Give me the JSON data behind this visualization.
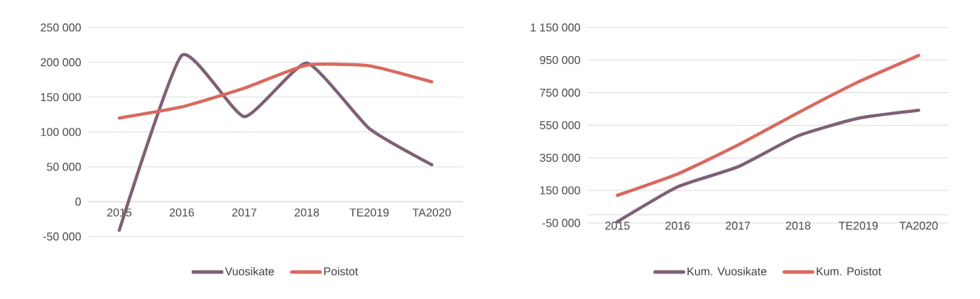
{
  "chart_data": [
    {
      "type": "line",
      "categories": [
        "2015",
        "2016",
        "2017",
        "2018",
        "TE2019",
        "TA2020"
      ],
      "series": [
        {
          "name": "Vuosikate",
          "color": "#7f6075",
          "values": [
            -41000,
            210000,
            122000,
            199000,
            105000,
            53000
          ]
        },
        {
          "name": "Poistot",
          "color": "#d9695f",
          "values": [
            120000,
            136000,
            163000,
            196000,
            195000,
            172000
          ]
        }
      ],
      "ylim": [
        -50000,
        250000
      ],
      "yticks": [
        {
          "value": -50000,
          "label": "-50 000"
        },
        0,
        {
          "value": 50000,
          "label": "50 000"
        },
        {
          "value": 100000,
          "label": "100 000"
        },
        {
          "value": 150000,
          "label": "150 000"
        },
        {
          "value": 200000,
          "label": "200 000"
        },
        {
          "value": 250000,
          "label": "250 000"
        }
      ],
      "grid": "y",
      "legend": "bottom"
    },
    {
      "type": "line",
      "categories": [
        "2015",
        "2016",
        "2017",
        "2018",
        "TE2019",
        "TA2020"
      ],
      "series": [
        {
          "name": "Kum. Vuosikate",
          "color": "#7f6075",
          "values": [
            -42000,
            172000,
            295000,
            485000,
            593000,
            642000
          ]
        },
        {
          "name": "Kum. Poistot",
          "color": "#d9695f",
          "values": [
            120000,
            251000,
            428000,
            627000,
            816000,
            978000
          ]
        }
      ],
      "ylim": [
        -50000,
        1150000
      ],
      "yticks": [
        {
          "value": -50000,
          "label": "-50 000"
        },
        {
          "value": 150000,
          "label": "150 000"
        },
        {
          "value": 350000,
          "label": "350 000"
        },
        {
          "value": 550000,
          "label": "550 000"
        },
        {
          "value": 750000,
          "label": "750 000"
        },
        {
          "value": 950000,
          "label": "950 000"
        },
        {
          "value": 1150000,
          "label": "1 150 000"
        }
      ],
      "grid": "y",
      "legend": "bottom"
    }
  ]
}
